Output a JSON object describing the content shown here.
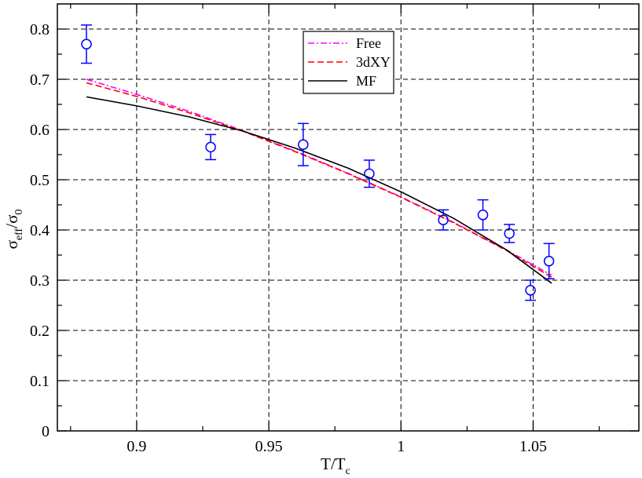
{
  "chart_data": {
    "type": "scatter",
    "xlabel": {
      "main": "T/T",
      "sub": "c"
    },
    "ylabel": {
      "main": "σ",
      "sub1": "eff",
      "mid": "/σ",
      "sub2": "0"
    },
    "xlim": [
      0.87,
      1.09
    ],
    "ylim": [
      0,
      0.85
    ],
    "xticks": [
      0.9,
      0.95,
      1.0,
      1.05
    ],
    "xtick_labels": [
      "0.9",
      "0.95",
      "1",
      "1.05"
    ],
    "yticks": [
      0,
      0.1,
      0.2,
      0.3,
      0.4,
      0.5,
      0.6,
      0.7,
      0.8
    ],
    "ytick_labels": [
      "0",
      "0.1",
      "0.2",
      "0.3",
      "0.4",
      "0.5",
      "0.6",
      "0.7",
      "0.8"
    ],
    "grid": true,
    "legend_position": "top-center",
    "data_points": {
      "color": "#0000ff",
      "marker": "circle",
      "points": [
        {
          "x": 0.881,
          "y": 0.77,
          "err": 0.038
        },
        {
          "x": 0.928,
          "y": 0.565,
          "err": 0.025
        },
        {
          "x": 0.963,
          "y": 0.57,
          "err": 0.042
        },
        {
          "x": 0.988,
          "y": 0.512,
          "err": 0.027
        },
        {
          "x": 1.016,
          "y": 0.42,
          "err": 0.02
        },
        {
          "x": 1.031,
          "y": 0.43,
          "err": 0.03
        },
        {
          "x": 1.041,
          "y": 0.393,
          "err": 0.018
        },
        {
          "x": 1.049,
          "y": 0.28,
          "err": 0.02
        },
        {
          "x": 1.056,
          "y": 0.338,
          "err": 0.035
        }
      ]
    },
    "series": [
      {
        "name": "Free",
        "color": "#ff00ff",
        "dash": "dashdot",
        "x": [
          0.881,
          0.9,
          0.92,
          0.94,
          0.96,
          0.98,
          1.0,
          1.02,
          1.04,
          1.057
        ],
        "y": [
          0.7,
          0.67,
          0.636,
          0.598,
          0.557,
          0.513,
          0.466,
          0.415,
          0.36,
          0.31
        ]
      },
      {
        "name": "3dXY",
        "color": "#ff0000",
        "dash": "dashed",
        "x": [
          0.881,
          0.9,
          0.92,
          0.94,
          0.96,
          0.98,
          1.0,
          1.02,
          1.04,
          1.057
        ],
        "y": [
          0.693,
          0.666,
          0.633,
          0.597,
          0.556,
          0.512,
          0.465,
          0.414,
          0.359,
          0.306
        ]
      },
      {
        "name": "MF",
        "color": "#000000",
        "dash": "solid",
        "x": [
          0.881,
          0.9,
          0.92,
          0.94,
          0.96,
          0.98,
          1.0,
          1.02,
          1.04,
          1.057
        ],
        "y": [
          0.665,
          0.647,
          0.625,
          0.597,
          0.563,
          0.523,
          0.476,
          0.423,
          0.36,
          0.294
        ]
      }
    ]
  }
}
